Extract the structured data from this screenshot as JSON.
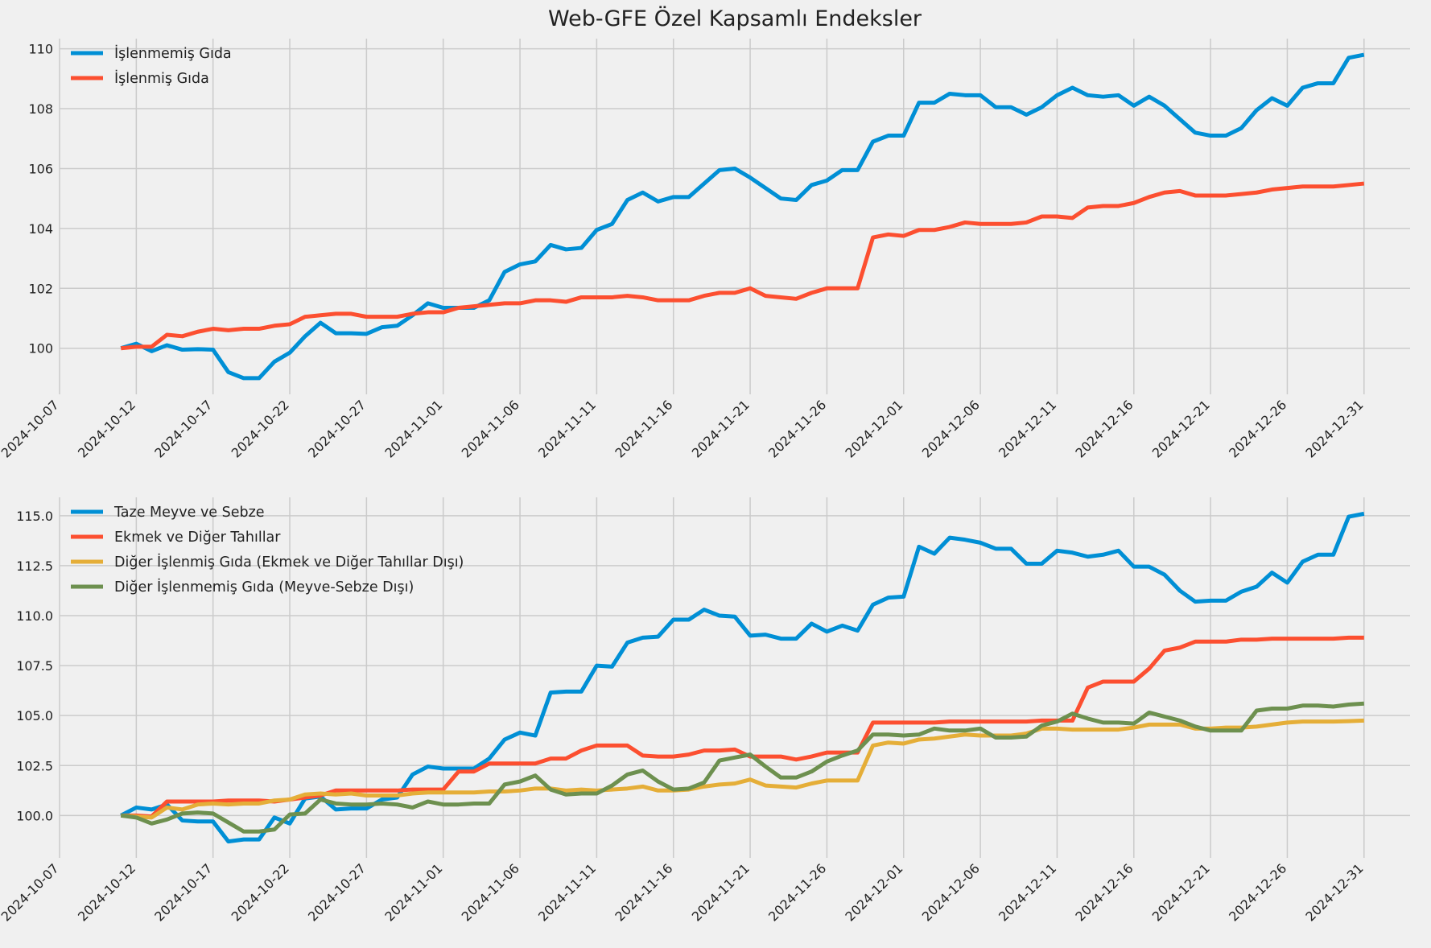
{
  "chart_data": [
    {
      "type": "line",
      "title": "Web-GFE Özel Kapsamlı Endeksler",
      "grid": true,
      "legend": "upper left",
      "x": [
        "2024-10-11",
        "2024-10-12",
        "2024-10-13",
        "2024-10-14",
        "2024-10-15",
        "2024-10-16",
        "2024-10-17",
        "2024-10-18",
        "2024-10-19",
        "2024-10-20",
        "2024-10-21",
        "2024-10-22",
        "2024-10-23",
        "2024-10-24",
        "2024-10-25",
        "2024-10-26",
        "2024-10-27",
        "2024-10-28",
        "2024-10-29",
        "2024-10-30",
        "2024-10-31",
        "2024-11-01",
        "2024-11-02",
        "2024-11-03",
        "2024-11-04",
        "2024-11-05",
        "2024-11-06",
        "2024-11-07",
        "2024-11-08",
        "2024-11-09",
        "2024-11-10",
        "2024-11-11",
        "2024-11-12",
        "2024-11-13",
        "2024-11-14",
        "2024-11-15",
        "2024-11-16",
        "2024-11-17",
        "2024-11-18",
        "2024-11-19",
        "2024-11-20",
        "2024-11-21",
        "2024-11-22",
        "2024-11-23",
        "2024-11-24",
        "2024-11-25",
        "2024-11-26",
        "2024-11-27",
        "2024-11-28",
        "2024-11-29",
        "2024-11-30",
        "2024-12-01",
        "2024-12-02",
        "2024-12-03",
        "2024-12-04",
        "2024-12-05",
        "2024-12-06",
        "2024-12-07",
        "2024-12-08",
        "2024-12-09",
        "2024-12-10",
        "2024-12-11",
        "2024-12-12",
        "2024-12-13",
        "2024-12-14",
        "2024-12-15",
        "2024-12-16",
        "2024-12-17",
        "2024-12-18",
        "2024-12-19",
        "2024-12-20",
        "2024-12-21",
        "2024-12-22",
        "2024-12-23",
        "2024-12-24",
        "2024-12-25",
        "2024-12-26",
        "2024-12-27",
        "2024-12-28",
        "2024-12-29",
        "2024-12-30",
        "2024-12-31"
      ],
      "xlim": [
        "2024-10-07",
        "2025-01-03"
      ],
      "xticks": [
        "2024-10-07",
        "2024-10-12",
        "2024-10-17",
        "2024-10-22",
        "2024-10-27",
        "2024-11-01",
        "2024-11-06",
        "2024-11-11",
        "2024-11-16",
        "2024-11-21",
        "2024-11-26",
        "2024-12-01",
        "2024-12-06",
        "2024-12-11",
        "2024-12-16",
        "2024-12-21",
        "2024-12-26",
        "2024-12-31"
      ],
      "ylim": [
        98.46,
        110.34
      ],
      "yticks": [
        100,
        102,
        104,
        106,
        108,
        110
      ],
      "series": [
        {
          "name": "İşlenmemiş Gıda",
          "color": "#008fd5",
          "values": [
            100.0,
            100.15,
            99.9,
            100.1,
            99.95,
            99.97,
            99.95,
            99.2,
            99.0,
            99.0,
            99.55,
            99.85,
            100.4,
            100.85,
            100.5,
            100.5,
            100.48,
            100.7,
            100.75,
            101.1,
            101.5,
            101.35,
            101.35,
            101.35,
            101.6,
            102.55,
            102.8,
            102.9,
            103.45,
            103.3,
            103.35,
            103.95,
            104.15,
            104.95,
            105.2,
            104.9,
            105.05,
            105.05,
            105.5,
            105.95,
            106.0,
            105.7,
            105.35,
            105.0,
            104.95,
            105.45,
            105.6,
            105.95,
            105.95,
            106.9,
            107.1,
            107.1,
            108.2,
            108.2,
            108.5,
            108.45,
            108.45,
            108.05,
            108.05,
            107.8,
            108.05,
            108.45,
            108.7,
            108.45,
            108.4,
            108.45,
            108.1,
            108.4,
            108.1,
            107.65,
            107.2,
            107.1,
            107.1,
            107.35,
            107.95,
            108.35,
            108.1,
            108.7,
            108.85,
            108.85,
            109.7,
            109.8
          ]
        },
        {
          "name": "İşlenmiş Gıda",
          "color": "#fc4f30",
          "values": [
            100.0,
            100.05,
            100.05,
            100.45,
            100.4,
            100.55,
            100.65,
            100.6,
            100.65,
            100.65,
            100.75,
            100.8,
            101.05,
            101.1,
            101.15,
            101.15,
            101.05,
            101.05,
            101.05,
            101.15,
            101.2,
            101.2,
            101.35,
            101.4,
            101.45,
            101.5,
            101.5,
            101.6,
            101.6,
            101.55,
            101.7,
            101.7,
            101.7,
            101.75,
            101.7,
            101.6,
            101.6,
            101.6,
            101.75,
            101.85,
            101.85,
            102.0,
            101.75,
            101.7,
            101.65,
            101.85,
            102.0,
            102.0,
            102.0,
            103.7,
            103.8,
            103.75,
            103.95,
            103.95,
            104.05,
            104.2,
            104.15,
            104.15,
            104.15,
            104.2,
            104.4,
            104.4,
            104.35,
            104.7,
            104.75,
            104.75,
            104.85,
            105.05,
            105.2,
            105.25,
            105.1,
            105.1,
            105.1,
            105.15,
            105.2,
            105.3,
            105.35,
            105.4,
            105.4,
            105.4,
            105.45,
            105.5
          ]
        }
      ]
    },
    {
      "type": "line",
      "grid": true,
      "legend": "upper left",
      "x": [
        "2024-10-11",
        "2024-10-12",
        "2024-10-13",
        "2024-10-14",
        "2024-10-15",
        "2024-10-16",
        "2024-10-17",
        "2024-10-18",
        "2024-10-19",
        "2024-10-20",
        "2024-10-21",
        "2024-10-22",
        "2024-10-23",
        "2024-10-24",
        "2024-10-25",
        "2024-10-26",
        "2024-10-27",
        "2024-10-28",
        "2024-10-29",
        "2024-10-30",
        "2024-10-31",
        "2024-11-01",
        "2024-11-02",
        "2024-11-03",
        "2024-11-04",
        "2024-11-05",
        "2024-11-06",
        "2024-11-07",
        "2024-11-08",
        "2024-11-09",
        "2024-11-10",
        "2024-11-11",
        "2024-11-12",
        "2024-11-13",
        "2024-11-14",
        "2024-11-15",
        "2024-11-16",
        "2024-11-17",
        "2024-11-18",
        "2024-11-19",
        "2024-11-20",
        "2024-11-21",
        "2024-11-22",
        "2024-11-23",
        "2024-11-24",
        "2024-11-25",
        "2024-11-26",
        "2024-11-27",
        "2024-11-28",
        "2024-11-29",
        "2024-11-30",
        "2024-12-01",
        "2024-12-02",
        "2024-12-03",
        "2024-12-04",
        "2024-12-05",
        "2024-12-06",
        "2024-12-07",
        "2024-12-08",
        "2024-12-09",
        "2024-12-10",
        "2024-12-11",
        "2024-12-12",
        "2024-12-13",
        "2024-12-14",
        "2024-12-15",
        "2024-12-16",
        "2024-12-17",
        "2024-12-18",
        "2024-12-19",
        "2024-12-20",
        "2024-12-21",
        "2024-12-22",
        "2024-12-23",
        "2024-12-24",
        "2024-12-25",
        "2024-12-26",
        "2024-12-27",
        "2024-12-28",
        "2024-12-29",
        "2024-12-30",
        "2024-12-31"
      ],
      "xlim": [
        "2024-10-07",
        "2025-01-03"
      ],
      "xticks": [
        "2024-10-07",
        "2024-10-12",
        "2024-10-17",
        "2024-10-22",
        "2024-10-27",
        "2024-11-01",
        "2024-11-06",
        "2024-11-11",
        "2024-11-16",
        "2024-11-21",
        "2024-11-26",
        "2024-12-01",
        "2024-12-06",
        "2024-12-11",
        "2024-12-16",
        "2024-12-21",
        "2024-12-26",
        "2024-12-31"
      ],
      "ylim": [
        97.88,
        115.92
      ],
      "yticks": [
        {
          "value": 100,
          "label": "100.0"
        },
        102.5,
        {
          "value": 105,
          "label": "105.0"
        },
        107.5,
        {
          "value": 110,
          "label": "110.0"
        },
        112.5,
        {
          "value": 115,
          "label": "115.0"
        }
      ],
      "series": [
        {
          "name": "Taze Meyve ve Sebze",
          "color": "#008fd5",
          "values": [
            100.0,
            100.4,
            100.3,
            100.55,
            99.75,
            99.7,
            99.7,
            98.7,
            98.8,
            98.8,
            99.9,
            99.6,
            100.85,
            100.95,
            100.3,
            100.35,
            100.35,
            100.8,
            100.9,
            102.05,
            102.45,
            102.35,
            102.35,
            102.35,
            102.85,
            103.8,
            104.15,
            104.0,
            106.15,
            106.2,
            106.2,
            107.5,
            107.45,
            108.65,
            108.9,
            108.95,
            109.8,
            109.8,
            110.3,
            110.0,
            109.95,
            109.0,
            109.05,
            108.85,
            108.85,
            109.6,
            109.2,
            109.5,
            109.25,
            110.55,
            110.9,
            110.95,
            113.45,
            113.1,
            113.9,
            113.8,
            113.65,
            113.35,
            113.35,
            112.6,
            112.6,
            113.25,
            113.15,
            112.95,
            113.05,
            113.25,
            112.45,
            112.45,
            112.05,
            111.25,
            110.7,
            110.75,
            110.75,
            111.2,
            111.45,
            112.15,
            111.65,
            112.7,
            113.05,
            113.05,
            114.95,
            115.1
          ]
        },
        {
          "name": "Ekmek ve Diğer Tahıllar",
          "color": "#fc4f30",
          "values": [
            100.0,
            100.0,
            99.95,
            100.7,
            100.7,
            100.7,
            100.7,
            100.75,
            100.75,
            100.75,
            100.7,
            100.8,
            100.9,
            101.0,
            101.25,
            101.25,
            101.25,
            101.25,
            101.25,
            101.3,
            101.3,
            101.3,
            102.2,
            102.2,
            102.6,
            102.6,
            102.6,
            102.6,
            102.85,
            102.85,
            103.25,
            103.5,
            103.5,
            103.5,
            103.0,
            102.95,
            102.95,
            103.05,
            103.25,
            103.25,
            103.3,
            102.95,
            102.95,
            102.95,
            102.8,
            102.95,
            103.15,
            103.15,
            103.15,
            104.65,
            104.65,
            104.65,
            104.65,
            104.65,
            104.7,
            104.7,
            104.7,
            104.7,
            104.7,
            104.7,
            104.75,
            104.75,
            104.75,
            106.4,
            106.7,
            106.7,
            106.7,
            107.35,
            108.25,
            108.4,
            108.7,
            108.7,
            108.7,
            108.8,
            108.8,
            108.85,
            108.85,
            108.85,
            108.85,
            108.85,
            108.9,
            108.9
          ]
        },
        {
          "name": "Diğer İşlenmiş Gıda (Ekmek ve Diğer Tahıllar Dışı)",
          "color": "#e5ae38",
          "values": [
            100.0,
            99.95,
            99.9,
            100.4,
            100.3,
            100.55,
            100.6,
            100.55,
            100.6,
            100.6,
            100.75,
            100.8,
            101.05,
            101.1,
            101.05,
            101.1,
            101.0,
            101.0,
            101.0,
            101.1,
            101.15,
            101.15,
            101.15,
            101.15,
            101.2,
            101.2,
            101.25,
            101.35,
            101.35,
            101.25,
            101.3,
            101.25,
            101.3,
            101.35,
            101.45,
            101.25,
            101.25,
            101.3,
            101.45,
            101.55,
            101.6,
            101.8,
            101.5,
            101.45,
            101.4,
            101.6,
            101.75,
            101.75,
            101.75,
            103.5,
            103.65,
            103.6,
            103.8,
            103.85,
            103.95,
            104.05,
            104.0,
            104.0,
            104.0,
            104.1,
            104.35,
            104.35,
            104.3,
            104.3,
            104.3,
            104.3,
            104.4,
            104.55,
            104.55,
            104.55,
            104.35,
            104.35,
            104.4,
            104.4,
            104.45,
            104.55,
            104.65,
            104.7,
            104.7,
            104.7,
            104.72,
            104.75
          ]
        },
        {
          "name": "Diğer İşlenmemiş Gıda (Meyve-Sebze Dışı)",
          "color": "#6d904f",
          "values": [
            100.0,
            99.9,
            99.6,
            99.8,
            100.1,
            100.15,
            100.1,
            99.65,
            99.2,
            99.2,
            99.3,
            100.05,
            100.1,
            100.8,
            100.6,
            100.55,
            100.55,
            100.6,
            100.55,
            100.4,
            100.7,
            100.55,
            100.55,
            100.6,
            100.6,
            101.55,
            101.7,
            102.0,
            101.3,
            101.05,
            101.1,
            101.1,
            101.5,
            102.05,
            102.25,
            101.7,
            101.3,
            101.35,
            101.65,
            102.75,
            102.9,
            103.05,
            102.45,
            101.9,
            101.9,
            102.2,
            102.7,
            103.0,
            103.25,
            104.05,
            104.05,
            104.0,
            104.05,
            104.35,
            104.25,
            104.25,
            104.35,
            103.9,
            103.9,
            103.95,
            104.5,
            104.7,
            105.1,
            104.85,
            104.65,
            104.65,
            104.6,
            105.15,
            104.95,
            104.75,
            104.45,
            104.25,
            104.25,
            104.25,
            105.25,
            105.35,
            105.35,
            105.5,
            105.5,
            105.45,
            105.55,
            105.6
          ]
        }
      ]
    }
  ]
}
